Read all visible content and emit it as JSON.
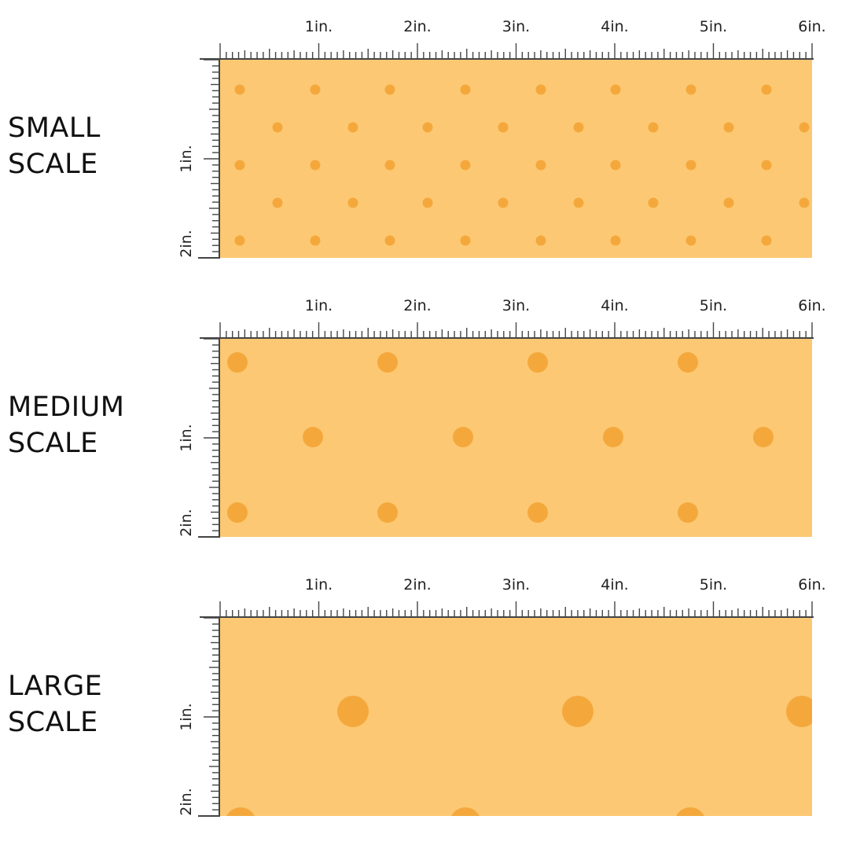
{
  "background_color": "#ffffff",
  "swatch_color": "#fcc873",
  "dot_color": "#f4a83c",
  "ruler_color": "#444444",
  "ruler": {
    "top_labels": [
      "1in.",
      "2in.",
      "3in.",
      "4in.",
      "5in.",
      "6in."
    ],
    "side_labels": [
      "1in.",
      "2in."
    ]
  },
  "panels": [
    {
      "id": "small",
      "label_line1": "SMALL",
      "label_line2": "SCALE"
    },
    {
      "id": "medium",
      "label_line1": "MEDIUM",
      "label_line2": "SCALE"
    },
    {
      "id": "large",
      "label_line1": "LARGE",
      "label_line2": "SCALE"
    }
  ]
}
